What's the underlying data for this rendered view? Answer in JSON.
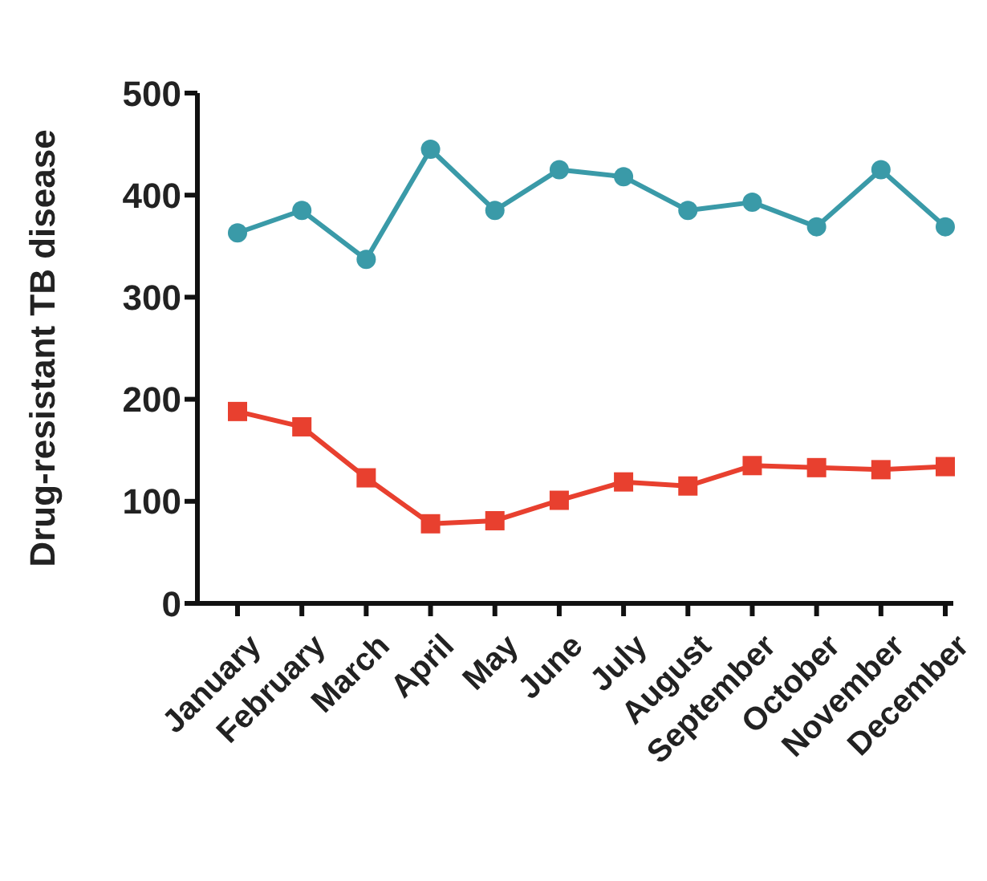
{
  "chart_data": {
    "type": "line",
    "ylabel": "Drug-resistant TB disease",
    "categories": [
      "January",
      "February",
      "March",
      "April",
      "May",
      "June",
      "July",
      "August",
      "September",
      "October",
      "November",
      "December"
    ],
    "series": [
      {
        "color": "#3a9aa8",
        "marker": "circle",
        "values": [
          363,
          385,
          337,
          445,
          385,
          425,
          418,
          385,
          393,
          369,
          425,
          369
        ]
      },
      {
        "color": "#e8402f",
        "marker": "square",
        "values": [
          188,
          173,
          123,
          78,
          81,
          101,
          119,
          115,
          135,
          133,
          131,
          134
        ]
      }
    ],
    "ylim": [
      0,
      500
    ],
    "yticks": [
      0,
      100,
      200,
      300,
      400,
      500
    ],
    "grid": false,
    "legend": false
  }
}
